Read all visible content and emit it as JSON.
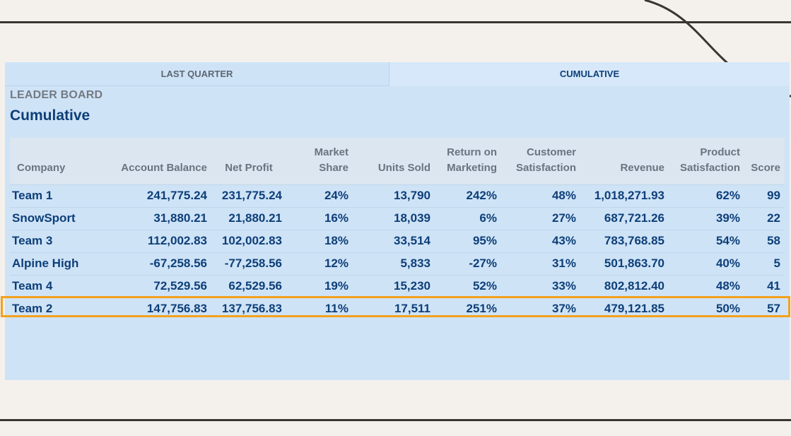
{
  "tabs": [
    {
      "label": "LAST QUARTER",
      "active": false
    },
    {
      "label": "CUMULATIVE",
      "active": true
    }
  ],
  "board": {
    "overline": "LEADER BOARD",
    "heading": "Cumulative"
  },
  "table": {
    "columns": [
      "Company",
      "Account Balance",
      "Net Profit",
      "Market Share",
      "Units Sold",
      "Return on Marketing",
      "Customer Satisfaction",
      "Revenue",
      "Product Satisfaction",
      "Score"
    ],
    "rows": [
      [
        "Team 1",
        "241,775.24",
        "231,775.24",
        "24%",
        "13,790",
        "242%",
        "48%",
        "1,018,271.93",
        "62%",
        "99"
      ],
      [
        "SnowSport",
        "31,880.21",
        "21,880.21",
        "16%",
        "18,039",
        "6%",
        "27%",
        "687,721.26",
        "39%",
        "22"
      ],
      [
        "Team 3",
        "112,002.83",
        "102,002.83",
        "18%",
        "33,514",
        "95%",
        "43%",
        "783,768.85",
        "54%",
        "58"
      ],
      [
        "Alpine High",
        "-67,258.56",
        "-77,258.56",
        "12%",
        "5,833",
        "-27%",
        "31%",
        "501,863.70",
        "40%",
        "5"
      ],
      [
        "Team 4",
        "72,529.56",
        "62,529.56",
        "19%",
        "15,230",
        "52%",
        "33%",
        "802,812.40",
        "48%",
        "41"
      ],
      [
        "Team 2",
        "147,756.83",
        "137,756.83",
        "11%",
        "17,511",
        "251%",
        "37%",
        "479,121.85",
        "50%",
        "57"
      ]
    ],
    "highlighted_row": "Team 2"
  },
  "colors": {
    "page_background": "#f4f1ec",
    "panel_background": "#cfe3f7",
    "text_primary": "#0d3f78",
    "text_muted": "#6a7380",
    "highlight": "#f4a11c"
  }
}
